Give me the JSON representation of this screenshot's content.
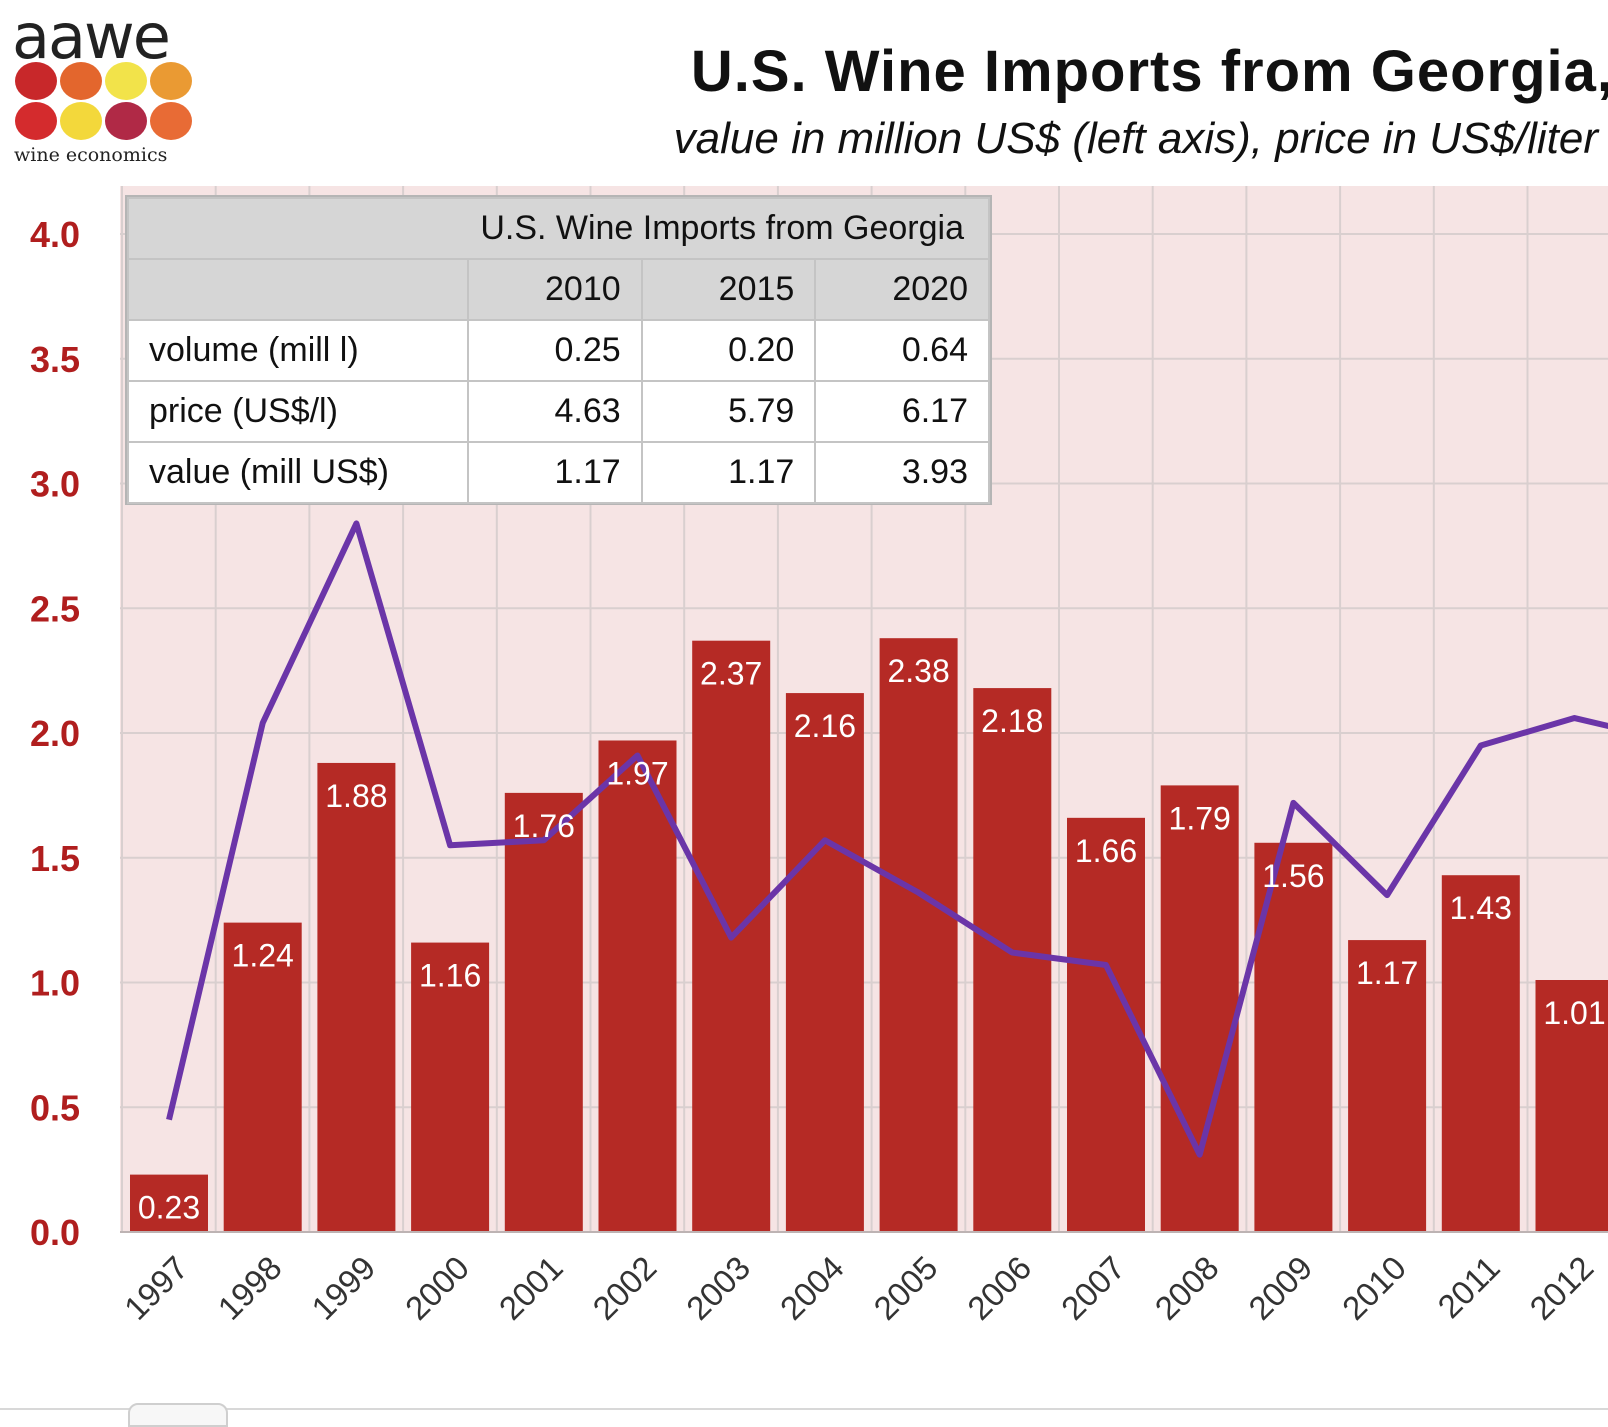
{
  "logo": {
    "text": "aawe",
    "tagline": "wine economics",
    "dot_colors": [
      "#c8282a",
      "#e3662d",
      "#f2e34a",
      "#ea9a33",
      "#d42b2d",
      "#f3d83b",
      "#b02946",
      "#e86b35"
    ]
  },
  "header": {
    "title": "U.S. Wine Imports from Georgia,",
    "subtitle": "value in million US$ (left axis), price in US$/liter"
  },
  "inset_table": {
    "title": "U.S. Wine Imports from Georgia",
    "columns": [
      "2010",
      "2015",
      "2020"
    ],
    "rows": [
      {
        "label": "volume (mill l)",
        "values": [
          "0.25",
          "0.20",
          "0.64"
        ]
      },
      {
        "label": "price (US$/l)",
        "values": [
          "4.63",
          "5.79",
          "6.17"
        ]
      },
      {
        "label": "value (mill US$)",
        "values": [
          "1.17",
          "1.17",
          "3.93"
        ]
      }
    ]
  },
  "chart_data": {
    "type": "bar",
    "categories": [
      "1997",
      "1998",
      "1999",
      "2000",
      "2001",
      "2002",
      "2003",
      "2004",
      "2005",
      "2006",
      "2007",
      "2008",
      "2009",
      "2010",
      "2011",
      "2012"
    ],
    "series": [
      {
        "type": "bar",
        "axis": "left",
        "color": "#b52a25",
        "values": [
          0.23,
          1.24,
          1.88,
          1.16,
          1.76,
          1.97,
          2.37,
          2.16,
          2.38,
          2.18,
          1.66,
          1.79,
          1.56,
          1.17,
          1.43,
          1.01
        ],
        "labels": [
          "0.23",
          "1.24",
          "1.88",
          "1.16",
          "1.76",
          "1.97",
          "2.37",
          "2.16",
          "2.38",
          "2.18",
          "1.66",
          "1.79",
          "1.56",
          "1.17",
          "1.43",
          "1.01"
        ]
      },
      {
        "type": "line",
        "axis": "right",
        "color": "#6b35a8",
        "values": [
          0.45,
          2.04,
          2.84,
          1.55,
          1.57,
          1.91,
          1.18,
          1.57,
          1.36,
          1.12,
          1.07,
          0.31,
          1.72,
          1.35,
          1.95,
          2.06
        ],
        "continues_beyond_2012": 2.0
      }
    ],
    "y_ticks": [
      "0.0",
      "0.5",
      "1.0",
      "1.5",
      "2.0",
      "2.5",
      "3.0",
      "3.5",
      "4.0"
    ],
    "ylim": [
      0,
      4
    ],
    "grid": true,
    "plot_background": "#f6e4e4",
    "axis_tick_color": "#b01e1e"
  }
}
